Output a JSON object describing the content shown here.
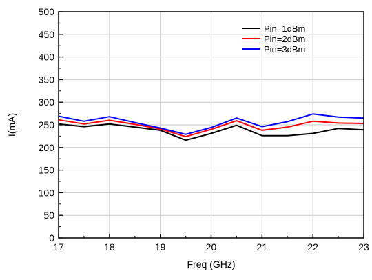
{
  "chart_data": {
    "type": "line",
    "title": "",
    "xlabel": "Freq (GHz)",
    "ylabel": "I(mA)",
    "xlim": [
      17,
      23
    ],
    "ylim": [
      0,
      500
    ],
    "xticks": [
      17,
      18,
      19,
      20,
      21,
      22,
      23
    ],
    "yticks": [
      0,
      50,
      100,
      150,
      200,
      250,
      300,
      350,
      400,
      450,
      500
    ],
    "grid": true,
    "legend_position": "top-right",
    "x": [
      17,
      17.5,
      18,
      18.5,
      19,
      19.5,
      20,
      20.5,
      21,
      21.5,
      22,
      22.5,
      23
    ],
    "series": [
      {
        "name": "Pin=1dBm",
        "color": "#000000",
        "values": [
          252,
          246,
          252,
          245,
          238,
          216,
          231,
          249,
          226,
          226,
          231,
          242,
          239
        ]
      },
      {
        "name": "Pin=2dBm",
        "color": "#ff0000",
        "values": [
          261,
          252,
          260,
          251,
          241,
          224,
          240,
          259,
          238,
          245,
          258,
          254,
          253
        ]
      },
      {
        "name": "Pin=3dBm",
        "color": "#0000ff",
        "values": [
          269,
          258,
          268,
          255,
          243,
          229,
          244,
          265,
          246,
          257,
          274,
          267,
          265
        ]
      }
    ]
  }
}
